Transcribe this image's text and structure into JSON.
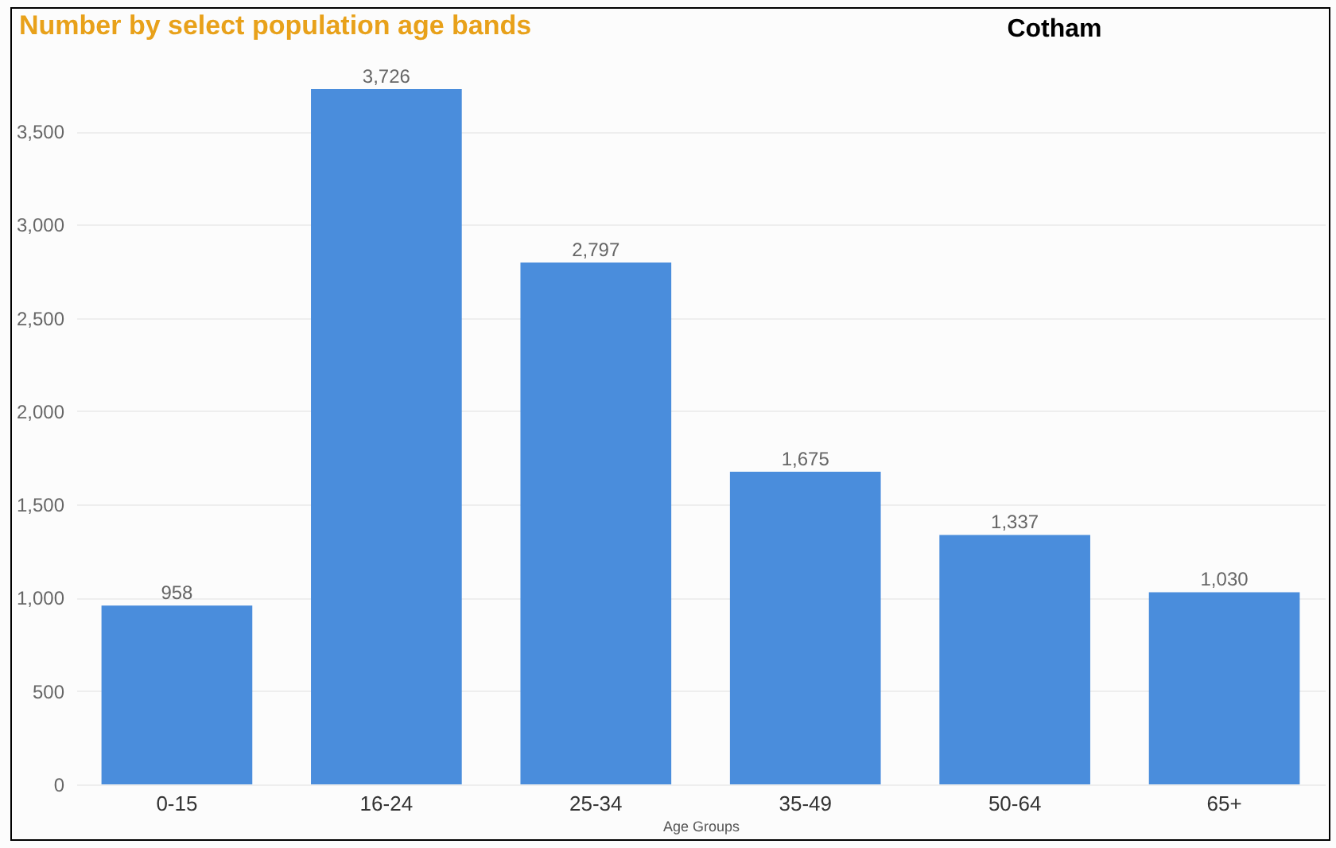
{
  "chart_data": {
    "type": "bar",
    "title": "Number by select population age bands",
    "subtitle": "Cotham",
    "xlabel": "Age Groups",
    "categories": [
      "0-15",
      "16-24",
      "25-34",
      "35-49",
      "50-64",
      "65+"
    ],
    "values": [
      958,
      3726,
      2797,
      1675,
      1337,
      1030
    ],
    "value_labels": [
      "958",
      "3,726",
      "2,797",
      "1,675",
      "1,337",
      "1,030"
    ],
    "color": "#4a8ddc",
    "ylim": [
      0,
      3726
    ],
    "yticks": [
      0,
      500,
      {
        "value": 1000,
        "label": "1,000"
      },
      {
        "value": 1500,
        "label": "1,500"
      },
      {
        "value": 2000,
        "label": "2,000"
      },
      {
        "value": 2500,
        "label": "2,500"
      },
      {
        "value": 3000,
        "label": "3,000"
      },
      {
        "value": 3500,
        "label": "3,500"
      }
    ],
    "grid": "y"
  }
}
